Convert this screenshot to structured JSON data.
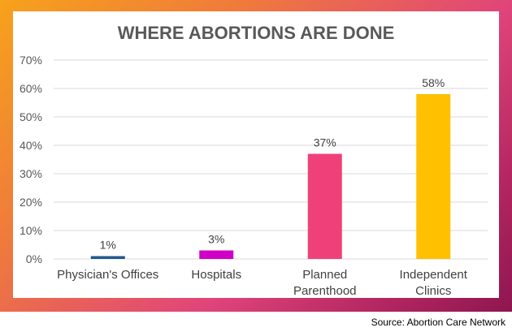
{
  "chart_data": {
    "type": "bar",
    "title": "WHERE ABORTIONS ARE DONE",
    "categories": [
      "Physician's Offices",
      "Hospitals",
      "Planned Parenthood",
      "Independent Clinics"
    ],
    "category_lines": [
      [
        "Physician's Offices"
      ],
      [
        "Hospitals"
      ],
      [
        "Planned",
        "Parenthood"
      ],
      [
        "Independent",
        "Clinics"
      ]
    ],
    "values": [
      1,
      3,
      37,
      58
    ],
    "data_labels": [
      "1%",
      "3%",
      "37%",
      "58%"
    ],
    "colors": [
      "#1f5a8c",
      "#d000c8",
      "#f0407a",
      "#ffc000"
    ],
    "ylim": [
      0,
      70
    ],
    "yticks": [
      0,
      10,
      20,
      30,
      40,
      50,
      60,
      70
    ],
    "ytick_labels": [
      "0%",
      "10%",
      "20%",
      "30%",
      "40%",
      "50%",
      "60%",
      "70%"
    ],
    "xlabel": "",
    "ylabel": "",
    "grid": true,
    "legend": "none"
  },
  "source_text": "Source: Abortion Care Network"
}
